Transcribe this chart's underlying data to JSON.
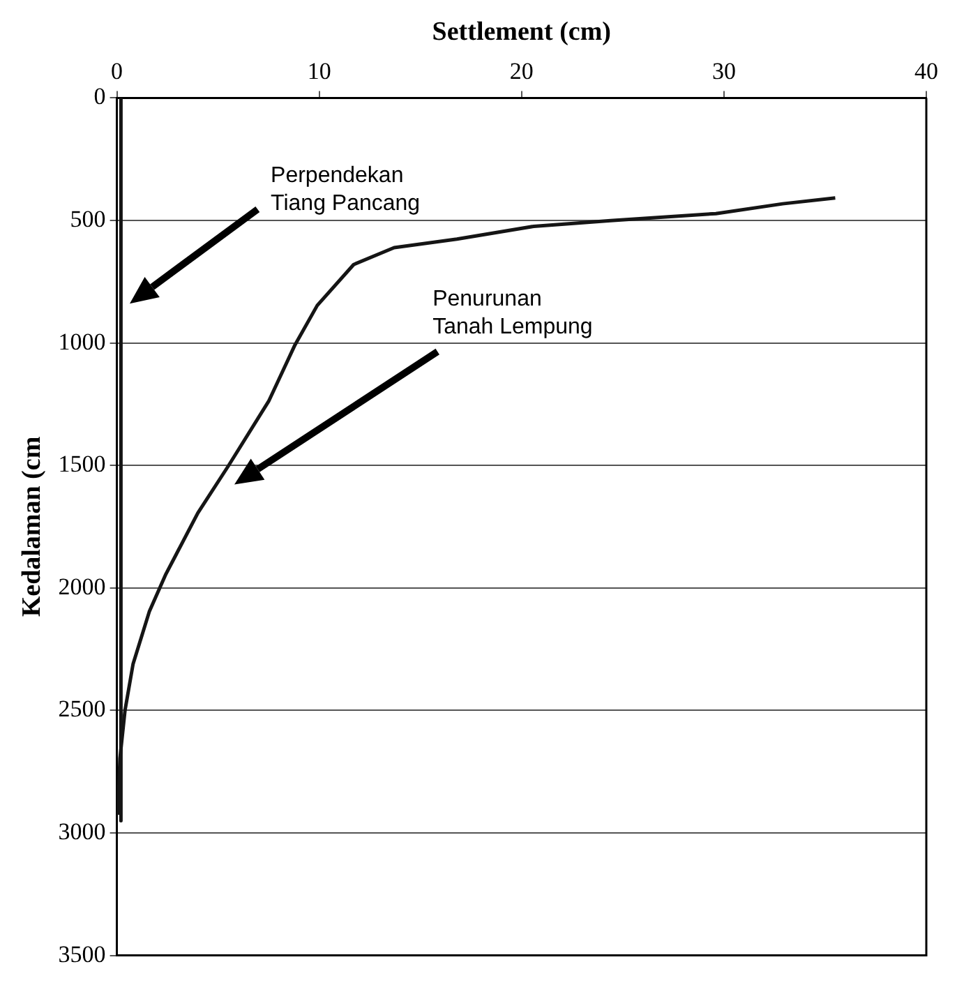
{
  "chart_data": {
    "type": "line",
    "xlabel": "Settlement (cm)",
    "ylabel": "Kedalaman (cm",
    "xlim": [
      0,
      40
    ],
    "xticks": [
      0,
      10,
      20,
      30,
      40
    ],
    "ylim": [
      3500,
      0
    ],
    "yticks": [
      0,
      500,
      1000,
      1500,
      2000,
      2500,
      3000,
      3500
    ],
    "grid": "y",
    "legend": false,
    "marker": "none",
    "line_style": "solid",
    "series": [
      {
        "color": "#151515",
        "x": [
          0.2,
          0.2
        ],
        "values": [
          0,
          2950
        ]
      },
      {
        "color": "#151515",
        "x": [
          0.05,
          0.15,
          0.4,
          0.8,
          1.6,
          2.4,
          4.0,
          5.5,
          7.5,
          8.8,
          9.9,
          11.7,
          13.7,
          16.8,
          20.6,
          24.4,
          29.6,
          32.9,
          35.5
        ],
        "values": [
          2926,
          2696,
          2500,
          2310,
          2097,
          1947,
          1694,
          1503,
          1238,
          1008,
          847,
          680,
          611,
          576,
          524,
          501,
          472,
          432,
          408
        ]
      }
    ],
    "annotations": [
      "Perpendekan\nTiang Pancang",
      "Penurunan\nTanah Lempung"
    ]
  }
}
